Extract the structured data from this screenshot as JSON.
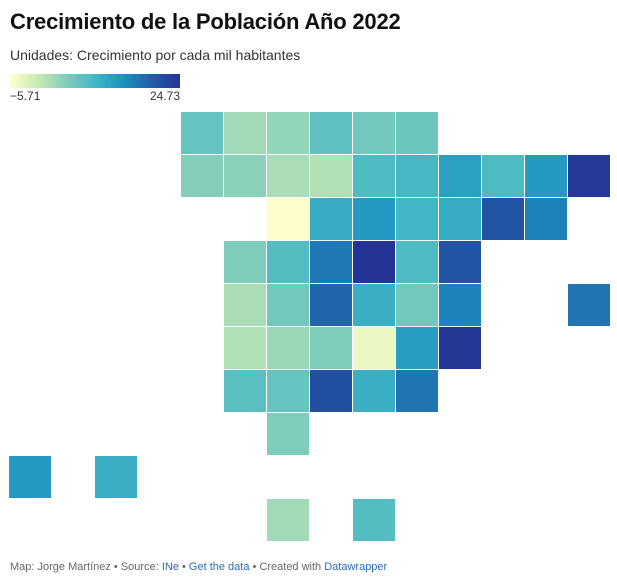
{
  "title": "Crecimiento de la Población Año 2022",
  "subtitle": "Unidades: Crecimiento por cada mil habitantes",
  "legend": {
    "min": "−5.71",
    "max": "24.73",
    "min_value": -5.71,
    "max_value": 24.73,
    "colors": [
      "#ffffcc",
      "#c7e9b4",
      "#7fcdbb",
      "#41b6c4",
      "#1d91c0",
      "#225ea8",
      "#253494"
    ]
  },
  "map": {
    "type": "tile grid map",
    "cells": [
      {
        "col": 0,
        "row": 0,
        "value": 6.5
      },
      {
        "col": 1,
        "row": 0,
        "value": 2.0
      },
      {
        "col": 2,
        "row": 0,
        "value": 3.0
      },
      {
        "col": 3,
        "row": 0,
        "value": 7.0
      },
      {
        "col": 4,
        "row": 0,
        "value": 5.5
      },
      {
        "col": 5,
        "row": 0,
        "value": 6.0
      },
      {
        "col": 0,
        "row": 1,
        "value": 4.0
      },
      {
        "col": 1,
        "row": 1,
        "value": 3.5
      },
      {
        "col": 2,
        "row": 1,
        "value": 1.5
      },
      {
        "col": 3,
        "row": 1,
        "value": 1.0
      },
      {
        "col": 4,
        "row": 1,
        "value": 8.5
      },
      {
        "col": 5,
        "row": 1,
        "value": 9.0
      },
      {
        "col": 6,
        "row": 1,
        "value": 12.5
      },
      {
        "col": 7,
        "row": 1,
        "value": 8.5
      },
      {
        "col": 8,
        "row": 1,
        "value": 13.5
      },
      {
        "col": 9,
        "row": 1,
        "value": 24.0
      },
      {
        "col": 2,
        "row": 2,
        "value": -5.71
      },
      {
        "col": 3,
        "row": 2,
        "value": 11.0
      },
      {
        "col": 4,
        "row": 2,
        "value": 13.5
      },
      {
        "col": 5,
        "row": 2,
        "value": 9.5
      },
      {
        "col": 6,
        "row": 2,
        "value": 11.0
      },
      {
        "col": 7,
        "row": 2,
        "value": 21.0
      },
      {
        "col": 8,
        "row": 2,
        "value": 16.0
      },
      {
        "col": 1,
        "row": 3,
        "value": 4.5
      },
      {
        "col": 2,
        "row": 3,
        "value": 8.0
      },
      {
        "col": 3,
        "row": 3,
        "value": 17.0
      },
      {
        "col": 4,
        "row": 3,
        "value": 24.73
      },
      {
        "col": 5,
        "row": 3,
        "value": 8.5
      },
      {
        "col": 6,
        "row": 3,
        "value": 21.0
      },
      {
        "col": 1,
        "row": 4,
        "value": 1.5
      },
      {
        "col": 2,
        "row": 4,
        "value": 5.5
      },
      {
        "col": 3,
        "row": 4,
        "value": 19.0
      },
      {
        "col": 4,
        "row": 4,
        "value": 10.5
      },
      {
        "col": 5,
        "row": 4,
        "value": 5.5
      },
      {
        "col": 6,
        "row": 4,
        "value": 16.0
      },
      {
        "col": 9,
        "row": 4,
        "value": 17.5
      },
      {
        "col": 1,
        "row": 5,
        "value": 1.0
      },
      {
        "col": 2,
        "row": 5,
        "value": 2.5
      },
      {
        "col": 3,
        "row": 5,
        "value": 4.5
      },
      {
        "col": 4,
        "row": 5,
        "value": -4.0
      },
      {
        "col": 5,
        "row": 5,
        "value": 13.0
      },
      {
        "col": 6,
        "row": 5,
        "value": 24.5
      },
      {
        "col": 1,
        "row": 6,
        "value": 7.5
      },
      {
        "col": 2,
        "row": 6,
        "value": 6.5
      },
      {
        "col": 3,
        "row": 6,
        "value": 21.5
      },
      {
        "col": 4,
        "row": 6,
        "value": 10.5
      },
      {
        "col": 5,
        "row": 6,
        "value": 17.5
      },
      {
        "col": 2,
        "row": 7,
        "value": 4.5
      },
      {
        "col": -4,
        "row": 8,
        "value": 13.5
      },
      {
        "col": -2,
        "row": 8,
        "value": 10.5
      },
      {
        "col": 2,
        "row": 9,
        "value": 2.0
      },
      {
        "col": 4,
        "row": 9,
        "value": 8.0
      }
    ]
  },
  "footer": {
    "map_by": "Map: Jorge Martínez",
    "sep1": " • Source: ",
    "source": "INe",
    "sep2": " • ",
    "get_data": "Get the data",
    "sep3": " • Created with ",
    "tool": "Datawrapper"
  }
}
